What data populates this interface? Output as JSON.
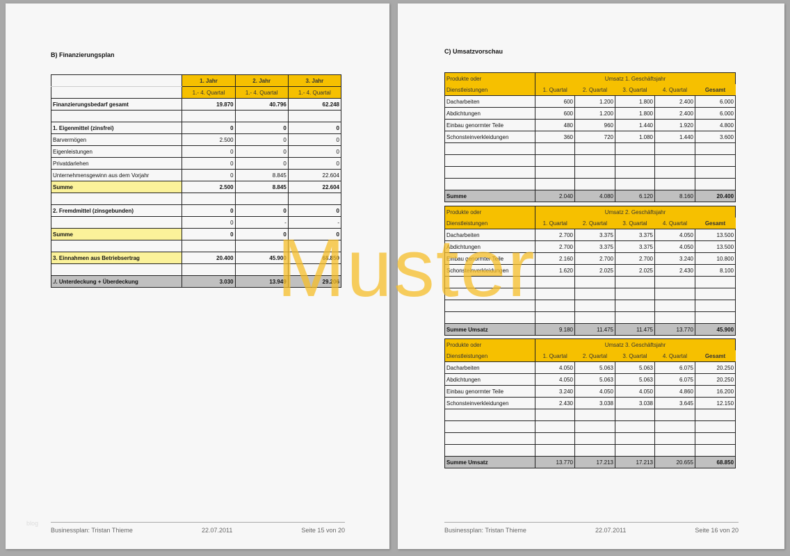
{
  "left_page": {
    "title": "B) Finanzierungsplan",
    "headers": [
      [
        "1. Jahr",
        "1.- 4. Quartal"
      ],
      [
        "2. Jahr",
        "1.- 4. Quartal"
      ],
      [
        "3. Jahr",
        "1.- 4. Quartal"
      ]
    ],
    "rows": [
      {
        "label": "Finanzierungsbedarf gesamt",
        "values": [
          "19.870",
          "40.796",
          "62.248"
        ],
        "style": "b"
      },
      {
        "label": "",
        "values": [
          "",
          "",
          ""
        ],
        "style": "blank"
      },
      {
        "label": "1. Eigenmittel (zinsfrei)",
        "values": [
          "0",
          "0",
          "0"
        ],
        "style": "b"
      },
      {
        "label": "Barvermögen",
        "values": [
          "2.500",
          "0",
          "0"
        ]
      },
      {
        "label": "Eigenleistungen",
        "values": [
          "0",
          "0",
          "0"
        ]
      },
      {
        "label": "Privatdarlehen",
        "values": [
          "0",
          "0",
          "0"
        ]
      },
      {
        "label": "Unternehmensgewinn aus dem Vorjahr",
        "values": [
          "0",
          "8.845",
          "22.604"
        ]
      },
      {
        "label": "Summe",
        "values": [
          "2.500",
          "8.845",
          "22.604"
        ],
        "style": "sum"
      },
      {
        "label": "",
        "values": [
          "",
          "",
          ""
        ],
        "style": "blank"
      },
      {
        "label": "2. Fremdmittel (zinsgebunden)",
        "values": [
          "0",
          "0",
          "0"
        ],
        "style": "b"
      },
      {
        "label": "",
        "values": [
          "0",
          "-",
          "-"
        ]
      },
      {
        "label": "Summe",
        "values": [
          "0",
          "0",
          "0"
        ],
        "style": "sum"
      },
      {
        "label": "",
        "values": [
          "",
          "",
          ""
        ],
        "style": "blank"
      },
      {
        "label": "3. Einnahmen aus Betriebsertrag",
        "values": [
          "20.400",
          "45.900",
          "68.850"
        ],
        "style": "sum"
      },
      {
        "label": "",
        "values": [
          "",
          "",
          ""
        ],
        "style": "blank"
      },
      {
        "label": "./. Unterdeckung       + Überdeckung",
        "values": [
          "3.030",
          "13.949",
          "29.206"
        ],
        "style": "gray"
      }
    ],
    "footer": {
      "author": "Businessplan: Tristan Thieme",
      "date": "22.07.2011",
      "page": "Seite 15 von 20"
    },
    "blog_mark": "blog"
  },
  "right_page": {
    "title": "C) Umsatzvorschau",
    "tables": [
      {
        "label_top": "Produkte oder",
        "label_bottom": "Dienstleistungen",
        "group": "Umsatz 1. Geschäftsjahr",
        "cols": [
          "1. Quartal",
          "2. Quartal",
          "3. Quartal",
          "4. Quartal",
          "Gesamt"
        ],
        "rows": [
          [
            "Dacharbeiten",
            "600",
            "1.200",
            "1.800",
            "2.400",
            "6.000"
          ],
          [
            "Abdichtungen",
            "600",
            "1.200",
            "1.800",
            "2.400",
            "6.000"
          ],
          [
            "Einbau genormter Teile",
            "480",
            "960",
            "1.440",
            "1.920",
            "4.800"
          ],
          [
            "Schonsteinverkleidungen",
            "360",
            "720",
            "1.080",
            "1.440",
            "3.600"
          ]
        ],
        "sum": [
          "Summe",
          "2.040",
          "4.080",
          "6.120",
          "8.160",
          "20.400"
        ]
      },
      {
        "label_top": "Produkte oder",
        "label_bottom": "Dienstleistungen",
        "group": "Umsatz 2. Geschäftsjahr",
        "cols": [
          "1. Quartal",
          "2. Quartal",
          "3. Quartal",
          "4. Quartal",
          "Gesamt"
        ],
        "rows": [
          [
            "Dacharbeiten",
            "2.700",
            "3.375",
            "3.375",
            "4.050",
            "13.500"
          ],
          [
            "Abdichtungen",
            "2.700",
            "3.375",
            "3.375",
            "4.050",
            "13.500"
          ],
          [
            "Einbau genormter Teile",
            "2.160",
            "2.700",
            "2.700",
            "3.240",
            "10.800"
          ],
          [
            "Schonsteinverkleidungen",
            "1.620",
            "2.025",
            "2.025",
            "2.430",
            "8.100"
          ]
        ],
        "sum": [
          "Summe Umsatz",
          "9.180",
          "11.475",
          "11.475",
          "13.770",
          "45.900"
        ]
      },
      {
        "label_top": "Produkte oder",
        "label_bottom": "Dienstleistungen",
        "group": "Umsatz 3. Geschäftsjahr",
        "cols": [
          "1. Quartal",
          "2. Quartal",
          "3. Quartal",
          "4. Quartal",
          "Gesamt"
        ],
        "rows": [
          [
            "Dacharbeiten",
            "4.050",
            "5.063",
            "5.063",
            "6.075",
            "20.250"
          ],
          [
            "Abdichtungen",
            "4.050",
            "5.063",
            "5.063",
            "6.075",
            "20.250"
          ],
          [
            "Einbau genormter Teile",
            "3.240",
            "4.050",
            "4.050",
            "4.860",
            "16.200"
          ],
          [
            "Schonsteinverkleidungen",
            "2.430",
            "3.038",
            "3.038",
            "3.645",
            "12.150"
          ]
        ],
        "sum": [
          "Summe Umsatz",
          "13.770",
          "17.213",
          "17.213",
          "20.655",
          "68.850"
        ]
      }
    ],
    "footer": {
      "author": "Businessplan: Tristan Thieme",
      "date": "22.07.2011",
      "page": "Seite 16 von 20"
    }
  },
  "watermark": "Muster",
  "colors": {
    "header": "#f6c000",
    "sum": "#fbf29a",
    "total": "#c0c0c0"
  }
}
